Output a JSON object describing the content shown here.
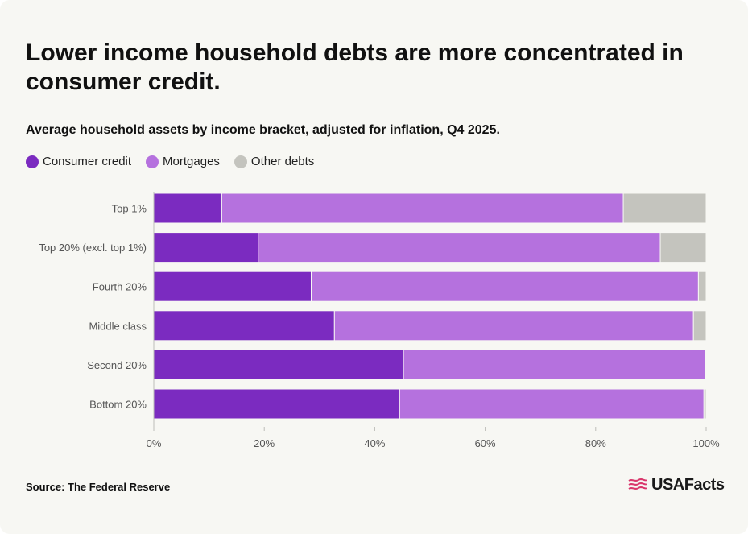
{
  "title": "Lower income household debts are more concentrated in consumer credit.",
  "subtitle": "Average household assets by income bracket, adjusted for inflation, Q4 2025.",
  "legend": [
    {
      "label": "Consumer credit",
      "color": "#7b2bc0"
    },
    {
      "label": "Mortgages",
      "color": "#b571de"
    },
    {
      "label": "Other debts",
      "color": "#c4c4be"
    }
  ],
  "source": "Source: The Federal Reserve",
  "logo": {
    "text": "USAFacts",
    "icon": "usa-flag-icon"
  },
  "chart_data": {
    "type": "bar",
    "orientation": "horizontal",
    "stacked": true,
    "categories": [
      "Top 1%",
      "Top 20% (excl. top 1%)",
      "Fourth 20%",
      "Middle class",
      "Second 20%",
      "Bottom 20%"
    ],
    "series": [
      {
        "name": "Consumer credit",
        "color": "#7b2bc0",
        "values": [
          12.3,
          18.9,
          28.5,
          32.7,
          45.2,
          44.5
        ]
      },
      {
        "name": "Mortgages",
        "color": "#b571de",
        "values": [
          72.7,
          72.8,
          70.1,
          65.0,
          54.7,
          55.1
        ]
      },
      {
        "name": "Other debts",
        "color": "#c4c4be",
        "values": [
          15.0,
          8.3,
          1.4,
          2.3,
          0.1,
          0.4
        ]
      }
    ],
    "xlim": [
      0,
      100
    ],
    "xticks": [
      "0%",
      "20%",
      "40%",
      "60%",
      "80%",
      "100%"
    ],
    "xlabel": "",
    "ylabel": ""
  }
}
